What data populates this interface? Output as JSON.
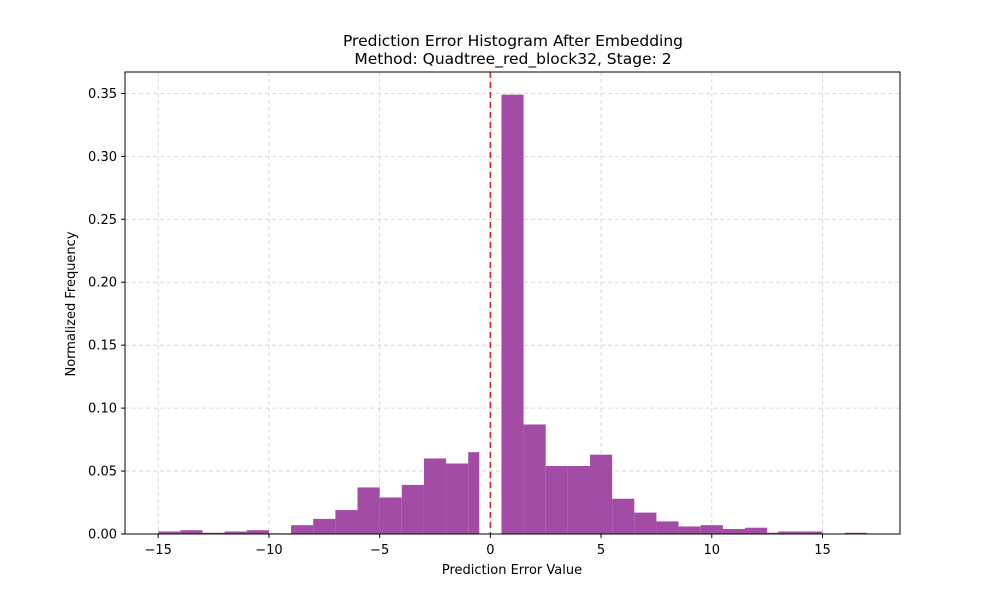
{
  "chart_data": {
    "type": "bar",
    "title": "Prediction Error Histogram After Embedding",
    "subtitle": "Method: Quadtree_red_block32, Stage: 2",
    "xlabel": "Prediction Error Value",
    "ylabel": "Normalized Frequency",
    "xlim": [
      -16.5,
      18.5
    ],
    "ylim": [
      0,
      0.367
    ],
    "xticks": [
      -15,
      -10,
      -5,
      0,
      5,
      10,
      15
    ],
    "xtick_labels": [
      "−15",
      "−10",
      "−5",
      "0",
      "5",
      "10",
      "15"
    ],
    "yticks": [
      0.0,
      0.05,
      0.1,
      0.15,
      0.2,
      0.25,
      0.3,
      0.35
    ],
    "ytick_labels": [
      "0.00",
      "0.05",
      "0.10",
      "0.15",
      "0.20",
      "0.25",
      "0.30",
      "0.35"
    ],
    "grid": true,
    "reference_line": {
      "x": 0,
      "style": "dashed",
      "color": "#d62728"
    },
    "bar_color": "#a24ca6",
    "bins": [
      {
        "x0": -15.0,
        "x1": -14.0,
        "value": 0.002
      },
      {
        "x0": -14.0,
        "x1": -13.0,
        "value": 0.003
      },
      {
        "x0": -13.0,
        "x1": -12.0,
        "value": 0.001
      },
      {
        "x0": -12.0,
        "x1": -11.0,
        "value": 0.002
      },
      {
        "x0": -11.0,
        "x1": -10.0,
        "value": 0.003
      },
      {
        "x0": -10.0,
        "x1": -9.0,
        "value": 0.0005
      },
      {
        "x0": -9.0,
        "x1": -8.0,
        "value": 0.007
      },
      {
        "x0": -8.0,
        "x1": -7.0,
        "value": 0.012
      },
      {
        "x0": -7.0,
        "x1": -6.0,
        "value": 0.019
      },
      {
        "x0": -6.0,
        "x1": -5.0,
        "value": 0.037
      },
      {
        "x0": -5.0,
        "x1": -4.0,
        "value": 0.029
      },
      {
        "x0": -4.0,
        "x1": -3.0,
        "value": 0.039
      },
      {
        "x0": -3.0,
        "x1": -2.0,
        "value": 0.06
      },
      {
        "x0": -2.0,
        "x1": -1.0,
        "value": 0.056
      },
      {
        "x0": -1.0,
        "x1": -0.5,
        "value": 0.065
      },
      {
        "x0": 0.5,
        "x1": 1.5,
        "value": 0.349
      },
      {
        "x0": 1.5,
        "x1": 2.5,
        "value": 0.087
      },
      {
        "x0": 2.5,
        "x1": 3.5,
        "value": 0.054
      },
      {
        "x0": 3.5,
        "x1": 4.5,
        "value": 0.054
      },
      {
        "x0": 4.5,
        "x1": 5.5,
        "value": 0.063
      },
      {
        "x0": 5.5,
        "x1": 6.5,
        "value": 0.028
      },
      {
        "x0": 6.5,
        "x1": 7.5,
        "value": 0.017
      },
      {
        "x0": 7.5,
        "x1": 8.5,
        "value": 0.01
      },
      {
        "x0": 8.5,
        "x1": 9.5,
        "value": 0.006
      },
      {
        "x0": 9.5,
        "x1": 10.5,
        "value": 0.007
      },
      {
        "x0": 10.5,
        "x1": 11.5,
        "value": 0.004
      },
      {
        "x0": 11.5,
        "x1": 12.5,
        "value": 0.005
      },
      {
        "x0": 12.5,
        "x1": 13.0,
        "value": 0.001
      },
      {
        "x0": 13.0,
        "x1": 15.0,
        "value": 0.002
      },
      {
        "x0": 16.0,
        "x1": 17.0,
        "value": 0.001
      }
    ]
  }
}
